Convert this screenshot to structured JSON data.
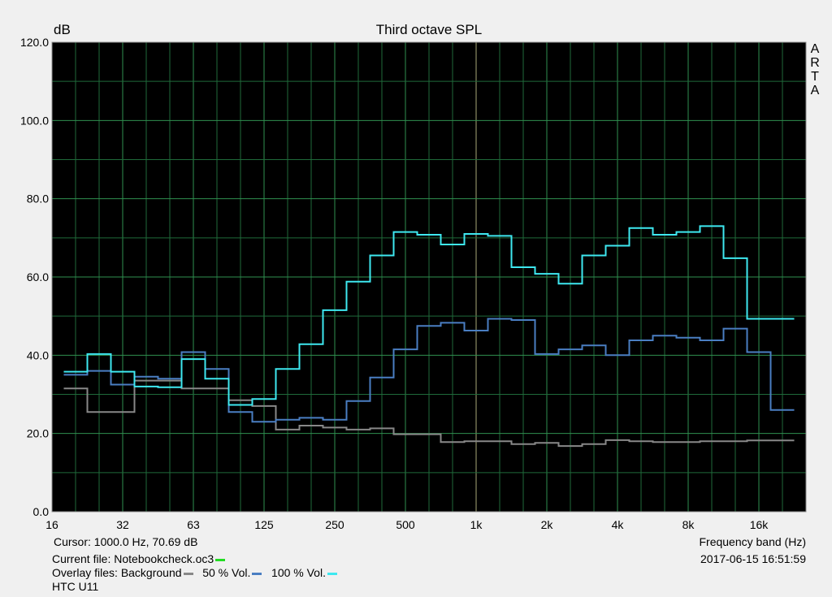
{
  "chart_data": {
    "type": "line",
    "title": "Third octave SPL",
    "ylabel": "dB",
    "xlabel": "Frequency band (Hz)",
    "ylim": [
      0,
      120
    ],
    "y_ticks": [
      "0.0",
      "20.0",
      "40.0",
      "60.0",
      "80.0",
      "100.0",
      "120.0"
    ],
    "x_ticks": [
      "16",
      "32",
      "63",
      "125",
      "250",
      "500",
      "1k",
      "2k",
      "4k",
      "8k",
      "16k"
    ],
    "x_scale": "log (third-octave bands)",
    "grid": true,
    "bands": [
      "16",
      "20",
      "25",
      "31.5",
      "40",
      "50",
      "63",
      "80",
      "100",
      "125",
      "160",
      "200",
      "250",
      "315",
      "400",
      "500",
      "630",
      "800",
      "1k",
      "1.25k",
      "1.6k",
      "2k",
      "2.5k",
      "3.15k",
      "4k",
      "5k",
      "6.3k",
      "8k",
      "10k",
      "12.5k",
      "16k"
    ],
    "series": [
      {
        "name": "Background",
        "color": "#888888",
        "values": [
          31.5,
          25.5,
          25.5,
          33.5,
          33.5,
          31.5,
          31.5,
          28.5,
          27.0,
          21.0,
          22.0,
          21.5,
          21.0,
          21.3,
          19.8,
          19.8,
          17.8,
          18.0,
          18.0,
          17.3,
          17.6,
          16.8,
          17.3,
          18.3,
          18.0,
          17.8,
          17.8,
          18.0,
          18.0,
          18.2,
          18.2
        ]
      },
      {
        "name": "50 % Vol.",
        "color": "#4a7ec2",
        "values": [
          35.0,
          36.0,
          32.5,
          34.5,
          34.0,
          40.8,
          36.5,
          25.5,
          23.0,
          23.5,
          24.0,
          23.5,
          28.3,
          34.3,
          41.5,
          47.5,
          48.3,
          46.3,
          49.3,
          49.0,
          40.3,
          41.5,
          42.5,
          40.0,
          43.8,
          45.0,
          44.5,
          43.8,
          46.8,
          40.8,
          26.0
        ]
      },
      {
        "name": "100 % Vol.",
        "color": "#3ee8f0",
        "values": [
          35.8,
          40.3,
          35.8,
          32.0,
          31.8,
          39.0,
          34.0,
          27.3,
          28.8,
          36.5,
          42.8,
          51.5,
          58.8,
          65.5,
          71.5,
          70.8,
          68.3,
          71.0,
          70.5,
          62.5,
          60.8,
          58.3,
          65.5,
          68.0,
          72.5,
          70.8,
          71.5,
          73.0,
          64.8,
          49.3,
          49.3
        ]
      }
    ]
  },
  "side_label": [
    "A",
    "R",
    "T",
    "A"
  ],
  "footer": {
    "cursor": "Cursor:  1000.0 Hz, 70.69 dB",
    "current_file_label": "Current file: Notebookcheck.oc3",
    "current_file_color": "#22dd22",
    "overlay_prefix": "Overlay files: ",
    "overlay": [
      {
        "label": "Background",
        "color": "#888888"
      },
      {
        "label": "50 % Vol.",
        "color": "#4a7ec2"
      },
      {
        "label": "100 % Vol.",
        "color": "#3ee8f0"
      }
    ],
    "device": "HTC U11",
    "timestamp": "2017-06-15  16:51:59"
  }
}
